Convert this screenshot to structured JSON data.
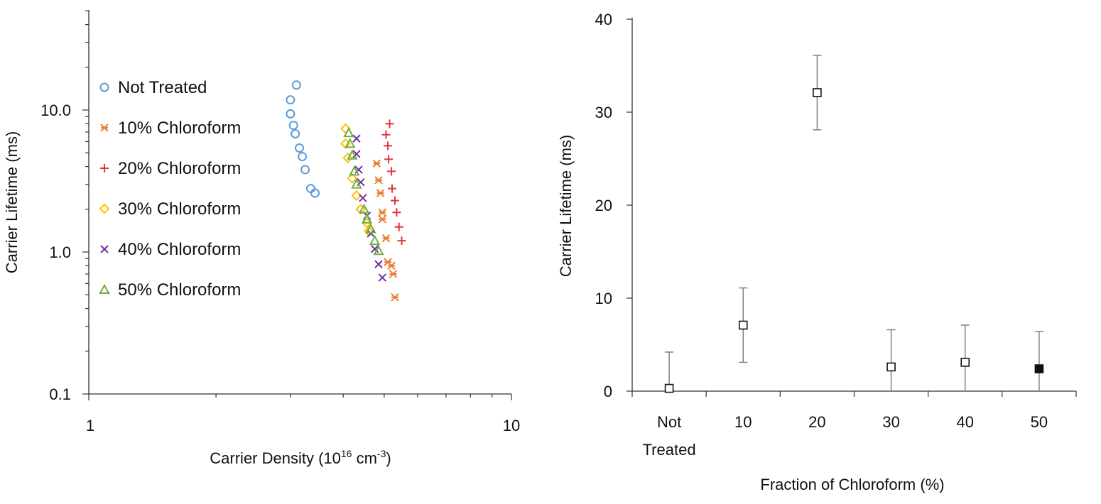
{
  "chart_data": [
    {
      "type": "scatter",
      "xscale": "log",
      "yscale": "log",
      "xlabel": "Carrier Density (10",
      "xlabel_sup": "16",
      "xlabel_unit": " cm",
      "xlabel_unit_sup": "-3",
      "xlabel_close": ")",
      "ylabel": "Carrier Lifetime (ms)",
      "xlim": [
        1,
        10
      ],
      "ylim": [
        0.1,
        50
      ],
      "xtick_labels": [
        "1",
        "10"
      ],
      "ytick_labels": [
        "0.1",
        "1.0",
        "10.0"
      ],
      "legend_position": "upper-left",
      "series": [
        {
          "name": "Not Treated",
          "marker": "circle",
          "color": "#5b9bd5",
          "x": [
            3.1,
            3.0,
            3.0,
            3.05,
            3.08,
            3.15,
            3.2,
            3.25,
            3.35,
            3.43
          ],
          "y": [
            15.0,
            11.8,
            9.4,
            7.8,
            6.8,
            5.4,
            4.7,
            3.8,
            2.8,
            2.6
          ]
        },
        {
          "name": "10% Chloroform",
          "marker": "asterisk",
          "color": "#ed7d31",
          "x": [
            4.8,
            4.85,
            4.9,
            4.95,
            4.95,
            5.05,
            5.1,
            5.2,
            5.25,
            5.3
          ],
          "y": [
            4.2,
            3.2,
            2.6,
            1.9,
            1.7,
            1.25,
            0.85,
            0.8,
            0.7,
            0.48
          ]
        },
        {
          "name": "20% Chloroform",
          "marker": "plus",
          "color": "#e8313b",
          "x": [
            5.15,
            5.05,
            5.1,
            5.12,
            5.2,
            5.22,
            5.3,
            5.35,
            5.42,
            5.5
          ],
          "y": [
            8.0,
            6.7,
            5.6,
            4.5,
            3.7,
            2.8,
            2.3,
            1.9,
            1.5,
            1.2
          ]
        },
        {
          "name": "30% Chloroform",
          "marker": "diamond",
          "color": "#ffc000",
          "x": [
            4.05,
            4.05,
            4.1,
            4.2,
            4.3,
            4.4,
            4.55,
            4.6
          ],
          "y": [
            7.4,
            5.8,
            4.6,
            3.3,
            2.5,
            2.0,
            1.6,
            1.4
          ]
        },
        {
          "name": "40% Chloroform",
          "marker": "x",
          "color": "#7030a0",
          "x": [
            4.3,
            4.3,
            4.35,
            4.4,
            4.45,
            4.55,
            4.65,
            4.75,
            4.85,
            4.95
          ],
          "y": [
            6.3,
            4.9,
            3.8,
            3.1,
            2.4,
            1.8,
            1.35,
            1.05,
            0.82,
            0.66
          ]
        },
        {
          "name": "50% Chloroform",
          "marker": "triangle",
          "color": "#70ad47",
          "x": [
            4.12,
            4.15,
            4.2,
            4.25,
            4.3,
            4.48,
            4.55,
            4.65,
            4.75,
            4.85
          ],
          "y": [
            6.9,
            5.8,
            4.8,
            3.7,
            3.0,
            2.0,
            1.7,
            1.45,
            1.2,
            1.02
          ]
        }
      ]
    },
    {
      "type": "scatter",
      "xlabel": "Fraction of Chloroform (%)",
      "ylabel": "Carrier Lifetime (ms)",
      "ylim": [
        0,
        40
      ],
      "yticks": [
        0,
        10,
        20,
        30,
        40
      ],
      "ytick_labels": [
        "0",
        "10",
        "20",
        "30",
        "40"
      ],
      "categories": [
        {
          "line1": "Not",
          "line2": "Treated"
        },
        {
          "line1": "10",
          "line2": ""
        },
        {
          "line1": "20",
          "line2": ""
        },
        {
          "line1": "30",
          "line2": ""
        },
        {
          "line1": "40",
          "line2": ""
        },
        {
          "line1": "50",
          "line2": ""
        }
      ],
      "values": [
        0.3,
        7.1,
        32.1,
        2.6,
        3.1,
        2.4
      ],
      "error": [
        3.9,
        4.0,
        4.0,
        4.0,
        4.0,
        4.0
      ],
      "filled": [
        false,
        false,
        false,
        false,
        false,
        true
      ],
      "color": "#111111",
      "error_color": "#808080"
    }
  ]
}
